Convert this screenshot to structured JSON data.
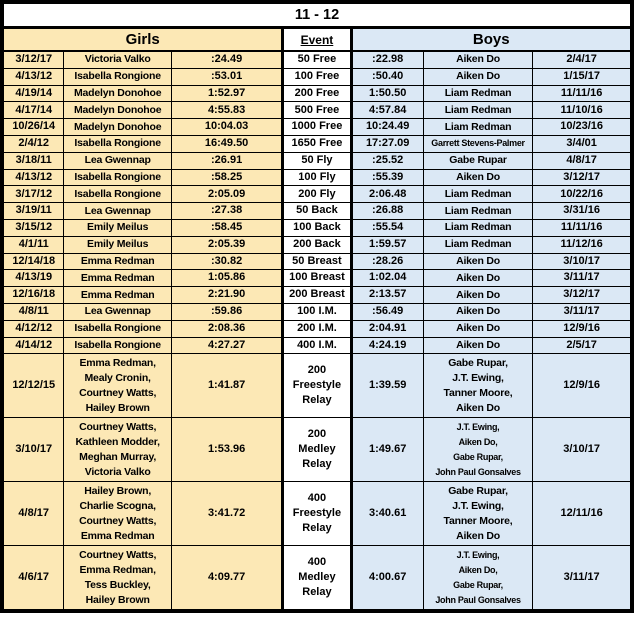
{
  "title": "11 - 12",
  "header": {
    "girls_label": "Girls",
    "event_label": "Event",
    "boys_label": "Boys"
  },
  "colors": {
    "girls_bg": "#FCE8B5",
    "boys_bg": "#DBE8F5",
    "border": "#000000",
    "text": "#000000",
    "background": "#FFFFFF"
  },
  "columns": [
    "girl_date",
    "girl_name",
    "girl_time",
    "event",
    "boy_time",
    "boy_name",
    "boy_date"
  ],
  "rows": [
    {
      "relay": false,
      "girl_date": "3/12/17",
      "girl_name": "Victoria Valko",
      "girl_time": ":24.49",
      "event": "50 Free",
      "boy_time": ":22.98",
      "boy_name": "Aiken Do",
      "boy_date": "2/4/17"
    },
    {
      "relay": false,
      "girl_date": "4/13/12",
      "girl_name": "Isabella Rongione",
      "girl_time": ":53.01",
      "event": "100 Free",
      "boy_time": ":50.40",
      "boy_name": "Aiken Do",
      "boy_date": "1/15/17"
    },
    {
      "relay": false,
      "girl_date": "4/19/14",
      "girl_name": "Madelyn Donohoe",
      "girl_time": "1:52.97",
      "event": "200 Free",
      "boy_time": "1:50.50",
      "boy_name": "Liam Redman",
      "boy_date": "11/11/16"
    },
    {
      "relay": false,
      "girl_date": "4/17/14",
      "girl_name": "Madelyn Donohoe",
      "girl_time": "4:55.83",
      "event": "500 Free",
      "boy_time": "4:57.84",
      "boy_name": "Liam Redman",
      "boy_date": "11/10/16"
    },
    {
      "relay": false,
      "girl_date": "10/26/14",
      "girl_name": "Madelyn Donohoe",
      "girl_time": "10:04.03",
      "event": "1000 Free",
      "boy_time": "10:24.49",
      "boy_name": "Liam Redman",
      "boy_date": "10/23/16"
    },
    {
      "relay": false,
      "girl_date": "2/4/12",
      "girl_name": "Isabella Rongione",
      "girl_time": "16:49.50",
      "event": "1650 Free",
      "boy_time": "17:27.09",
      "boy_name": "Garrett Stevens-Palmer",
      "boy_date": "3/4/01"
    },
    {
      "relay": false,
      "girl_date": "3/18/11",
      "girl_name": "Lea Gwennap",
      "girl_time": ":26.91",
      "event": "50 Fly",
      "boy_time": ":25.52",
      "boy_name": "Gabe Rupar",
      "boy_date": "4/8/17"
    },
    {
      "relay": false,
      "girl_date": "4/13/12",
      "girl_name": "Isabella Rongione",
      "girl_time": ":58.25",
      "event": "100 Fly",
      "boy_time": ":55.39",
      "boy_name": "Aiken Do",
      "boy_date": "3/12/17"
    },
    {
      "relay": false,
      "girl_date": "3/17/12",
      "girl_name": "Isabella Rongione",
      "girl_time": "2:05.09",
      "event": "200 Fly",
      "boy_time": "2:06.48",
      "boy_name": "Liam Redman",
      "boy_date": "10/22/16"
    },
    {
      "relay": false,
      "girl_date": "3/19/11",
      "girl_name": "Lea Gwennap",
      "girl_time": ":27.38",
      "event": "50 Back",
      "boy_time": ":26.88",
      "boy_name": "Liam Redman",
      "boy_date": "3/31/16"
    },
    {
      "relay": false,
      "girl_date": "3/15/12",
      "girl_name": "Emily Meilus",
      "girl_time": ":58.45",
      "event": "100 Back",
      "boy_time": ":55.54",
      "boy_name": "Liam Redman",
      "boy_date": "11/11/16"
    },
    {
      "relay": false,
      "girl_date": "4/1/11",
      "girl_name": "Emily Meilus",
      "girl_time": "2:05.39",
      "event": "200 Back",
      "boy_time": "1:59.57",
      "boy_name": "Liam Redman",
      "boy_date": "11/12/16"
    },
    {
      "relay": false,
      "girl_date": "12/14/18",
      "girl_name": "Emma Redman",
      "girl_time": ":30.82",
      "event": "50 Breast",
      "boy_time": ":28.26",
      "boy_name": "Aiken Do",
      "boy_date": "3/10/17"
    },
    {
      "relay": false,
      "girl_date": "4/13/19",
      "girl_name": "Emma Redman",
      "girl_time": "1:05.86",
      "event": "100 Breast",
      "boy_time": "1:02.04",
      "boy_name": "Aiken Do",
      "boy_date": "3/11/17"
    },
    {
      "relay": false,
      "girl_date": "12/16/18",
      "girl_name": "Emma Redman",
      "girl_time": "2:21.90",
      "event": "200 Breast",
      "boy_time": "2:13.57",
      "boy_name": "Aiken Do",
      "boy_date": "3/12/17"
    },
    {
      "relay": false,
      "girl_date": "4/8/11",
      "girl_name": "Lea Gwennap",
      "girl_time": ":59.86",
      "event": "100 I.M.",
      "boy_time": ":56.49",
      "boy_name": "Aiken Do",
      "boy_date": "3/11/17"
    },
    {
      "relay": false,
      "girl_date": "4/12/12",
      "girl_name": "Isabella Rongione",
      "girl_time": "2:08.36",
      "event": "200 I.M.",
      "boy_time": "2:04.91",
      "boy_name": "Aiken Do",
      "boy_date": "12/9/16"
    },
    {
      "relay": false,
      "girl_date": "4/14/12",
      "girl_name": "Isabella Rongione",
      "girl_time": "4:27.27",
      "event": "400 I.M.",
      "boy_time": "4:24.19",
      "boy_name": "Aiken Do",
      "boy_date": "2/5/17"
    },
    {
      "relay": true,
      "girl_date": "12/12/15",
      "girl_name": "Emma Redman,\nMealy Cronin,\nCourtney Watts,\nHailey Brown",
      "girl_time": "1:41.87",
      "event": "200\nFreestyle\nRelay",
      "boy_time": "1:39.59",
      "boy_name": "Gabe Rupar,\nJ.T. Ewing,\nTanner Moore,\nAiken Do",
      "boy_date": "12/9/16"
    },
    {
      "relay": true,
      "girl_date": "3/10/17",
      "girl_name": "Courtney Watts,\nKathleen Modder,\nMeghan Murray,\nVictoria Valko",
      "girl_time": "1:53.96",
      "event": "200\nMedley\nRelay",
      "boy_time": "1:49.67",
      "boy_name": "J.T. Ewing,\nAiken Do,\nGabe Rupar,\nJohn Paul Gonsalves",
      "boy_date": "3/10/17"
    },
    {
      "relay": true,
      "girl_date": "4/8/17",
      "girl_name": "Hailey Brown,\nCharlie Scogna,\nCourtney Watts,\nEmma Redman",
      "girl_time": "3:41.72",
      "event": "400\nFreestyle\nRelay",
      "boy_time": "3:40.61",
      "boy_name": "Gabe Rupar,\nJ.T. Ewing,\nTanner Moore,\nAiken Do",
      "boy_date": "12/11/16"
    },
    {
      "relay": true,
      "girl_date": "4/6/17",
      "girl_name": "Courtney Watts,\nEmma Redman,\nTess Buckley,\nHailey Brown",
      "girl_time": "4:09.77",
      "event": "400\nMedley\nRelay",
      "boy_time": "4:00.67",
      "boy_name": "J.T. Ewing,\nAiken Do,\nGabe Rupar,\nJohn Paul Gonsalves",
      "boy_date": "3/11/17"
    }
  ]
}
